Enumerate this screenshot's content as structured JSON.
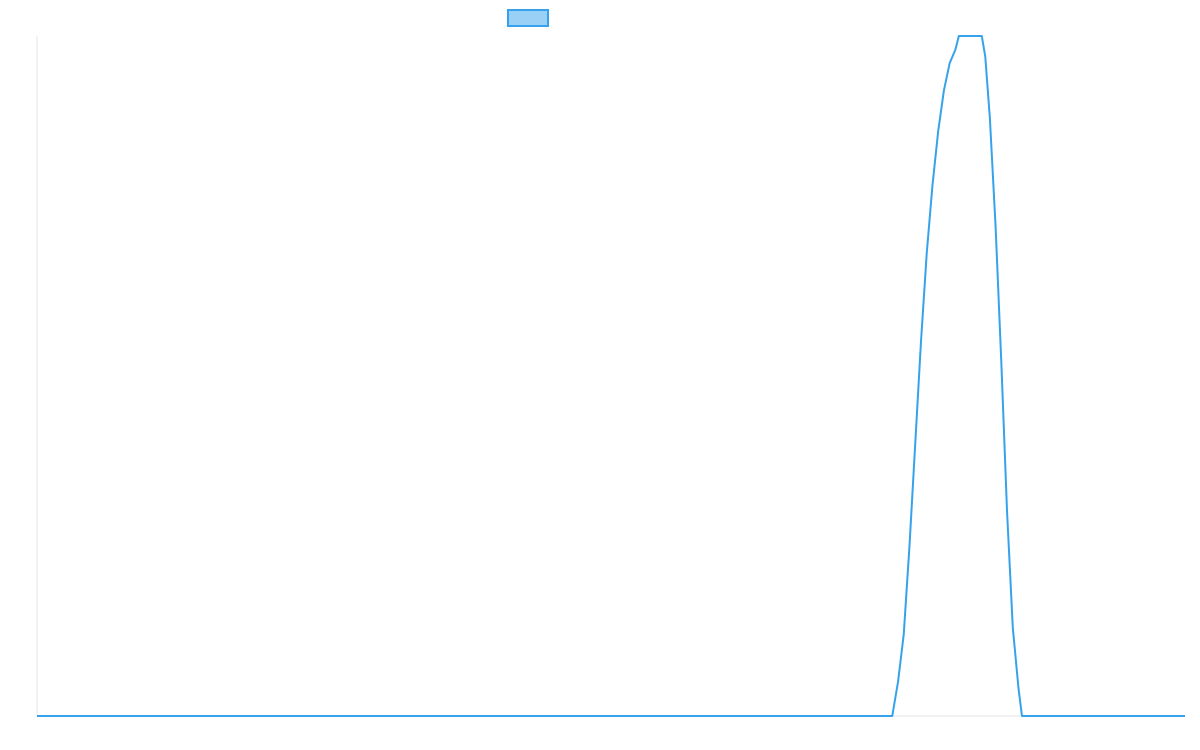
{
  "chart_data": {
    "type": "line",
    "title": "",
    "xlabel": "",
    "ylabel": "",
    "grid": false,
    "legend": {
      "position": "top-center",
      "show_swatch_only": true
    },
    "colors": {
      "line": "#36a2eb",
      "legend_fill": "#9ad0f5",
      "axis": "#e6e6e6"
    },
    "xlim": [
      0,
      100
    ],
    "ylim": [
      0,
      100
    ],
    "series": [
      {
        "values": [
          [
            0,
            0
          ],
          [
            74.5,
            0
          ],
          [
            75.0,
            5
          ],
          [
            75.5,
            12
          ],
          [
            76.0,
            25
          ],
          [
            76.5,
            40
          ],
          [
            77.0,
            55
          ],
          [
            77.5,
            68
          ],
          [
            78.0,
            78
          ],
          [
            78.5,
            86
          ],
          [
            79.0,
            92
          ],
          [
            79.5,
            96
          ],
          [
            80.0,
            98
          ],
          [
            80.3,
            100
          ],
          [
            82.3,
            100
          ],
          [
            82.6,
            97
          ],
          [
            83.0,
            88
          ],
          [
            83.5,
            72
          ],
          [
            84.0,
            52
          ],
          [
            84.5,
            30
          ],
          [
            85.0,
            13
          ],
          [
            85.5,
            4
          ],
          [
            85.8,
            0
          ],
          [
            100,
            0
          ]
        ]
      }
    ]
  }
}
